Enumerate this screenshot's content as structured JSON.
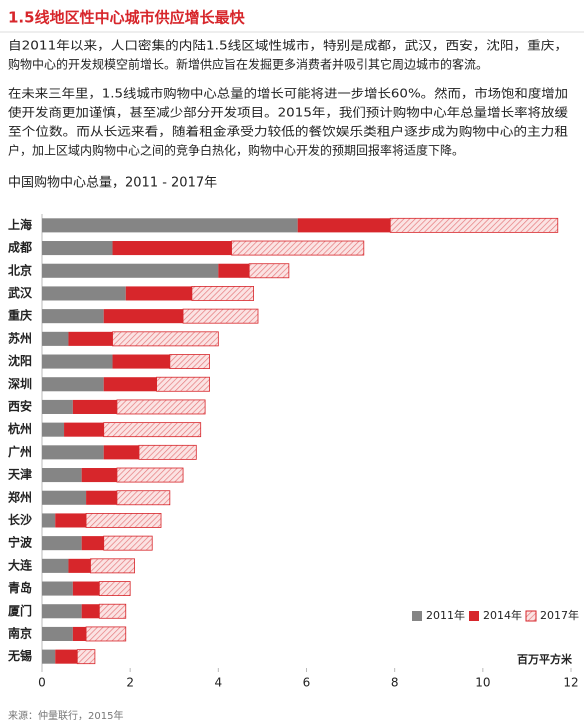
{
  "heading": "1.5线地区性中心城市供应增长最快",
  "paragraphs": [
    [
      "自2011年以来，人口密集的内陆1.5线区域性城市，特别是成都，武汉，西安，沈阳，重庆，",
      "购物中心的开发规模空前增长。新增供应旨在发掘更多消费者并吸引其它周边城市的客流。"
    ],
    [
      "在未来三年里，1.5线城市购物中心总量的增长可能将进一步增长60%。然而，市场饱和度增加",
      "使开发商更加谨慎，甚至减少部分开发项目。2015年，我们预计购物中心年总量增长率将放缓",
      "至个位数。而从长远来看，随着租金承受力较低的餐饮娱乐类租户逐步成为购物中心的主力租",
      "户，加上区域内购物中心之间的竞争白热化，购物中心开发的预期回报率将适度下降。"
    ]
  ],
  "source": "来源：仲量联行，2015年",
  "chart_data": {
    "type": "stacked-barh",
    "title": "中国购物中心总量，2011 - 2017年",
    "unit_label": "百万平方米",
    "categories": [
      "上海",
      "成都",
      "北京",
      "武汉",
      "重庆",
      "苏州",
      "沈阳",
      "深圳",
      "西安",
      "杭州",
      "广州",
      "天津",
      "郑州",
      "长沙",
      "宁波",
      "大连",
      "青岛",
      "厦门",
      "南京",
      "无锡"
    ],
    "series": [
      {
        "name": "2011年",
        "color": "#858585",
        "values": [
          5.8,
          1.6,
          4.0,
          1.9,
          1.4,
          0.6,
          1.6,
          1.4,
          0.7,
          0.5,
          1.4,
          0.9,
          1.0,
          0.3,
          0.9,
          0.6,
          0.7,
          0.9,
          0.7,
          0.3
        ]
      },
      {
        "name": "2014年",
        "color": "#d7262b",
        "values": [
          2.1,
          2.7,
          0.7,
          1.5,
          1.8,
          1.0,
          1.3,
          1.2,
          1.0,
          0.9,
          0.8,
          0.8,
          0.7,
          0.7,
          0.5,
          0.5,
          0.6,
          0.4,
          0.3,
          0.5
        ]
      },
      {
        "name": "2017年",
        "color": "#d7262b",
        "pattern": "hatch",
        "values": [
          3.8,
          3.0,
          0.9,
          1.4,
          1.7,
          2.4,
          0.9,
          1.2,
          2.0,
          2.2,
          1.3,
          1.5,
          1.2,
          1.7,
          1.1,
          1.0,
          0.7,
          0.6,
          0.9,
          0.4
        ]
      }
    ],
    "xlim": [
      0,
      12
    ],
    "xticks": [
      0,
      2,
      4,
      6,
      8,
      10,
      12
    ],
    "legend": "lower-right"
  }
}
